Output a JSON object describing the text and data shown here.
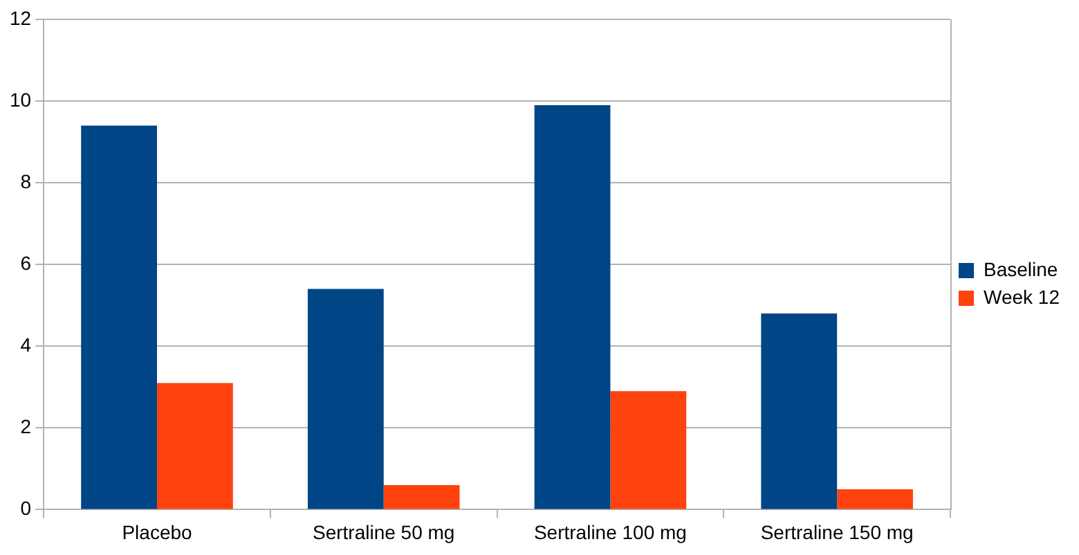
{
  "chart_data": {
    "type": "bar",
    "categories": [
      "Placebo",
      "Sertraline 50 mg",
      "Sertraline 100 mg",
      "Sertraline 150 mg"
    ],
    "series": [
      {
        "name": "Baseline",
        "color": "#004586",
        "values": [
          9.4,
          5.4,
          9.9,
          4.8
        ]
      },
      {
        "name": "Week 12",
        "color": "#ff420e",
        "values": [
          3.1,
          0.6,
          2.9,
          0.5
        ]
      }
    ],
    "ylim": [
      0,
      12
    ],
    "yticks": [
      0,
      2,
      4,
      6,
      8,
      10,
      12
    ],
    "grid": "y",
    "legend": "right"
  }
}
